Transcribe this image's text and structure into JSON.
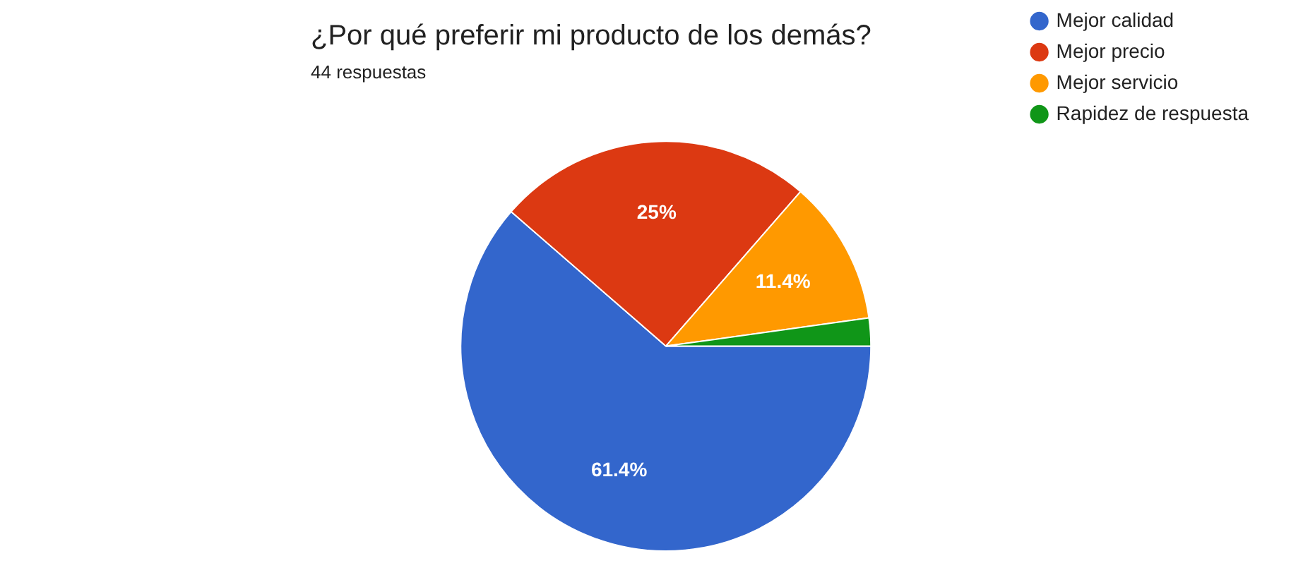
{
  "chart_data": {
    "type": "pie",
    "title": "¿Por qué preferir mi producto de los demás?",
    "subtitle": "44 respuestas",
    "categories": [
      "Mejor calidad",
      "Mejor precio",
      "Mejor servicio",
      "Rapidez de respuesta"
    ],
    "values": [
      61.4,
      25,
      11.4,
      2.2
    ],
    "colors": [
      "#3366cc",
      "#dc3912",
      "#ff9900",
      "#109618"
    ],
    "value_labels": [
      "61.4%",
      "25%",
      "11.4%",
      null
    ],
    "legend": "right"
  }
}
